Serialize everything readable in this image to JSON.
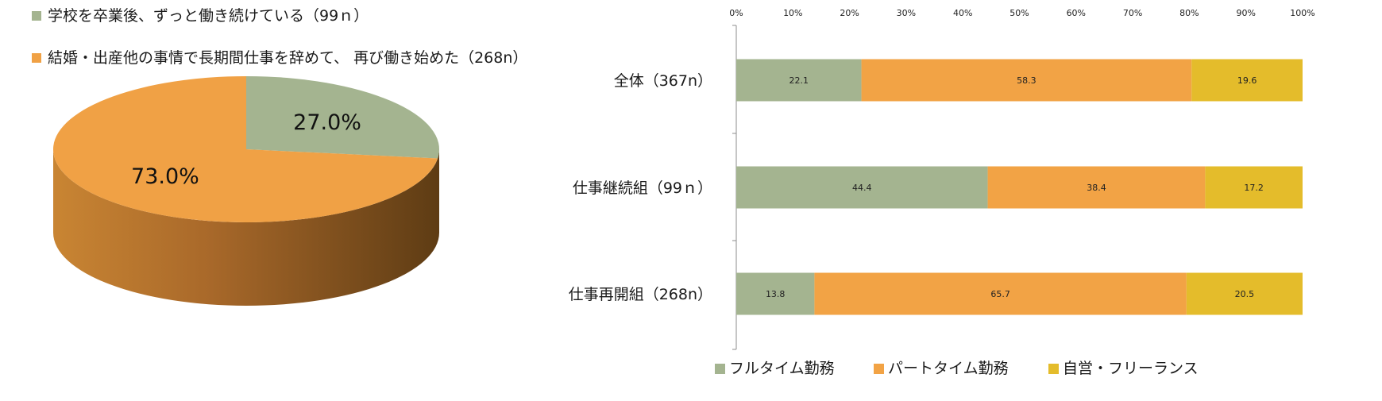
{
  "chart_data": [
    {
      "type": "pie",
      "legend_position": "top",
      "slices": [
        {
          "name": "学校を卒業後、ずっと働き続けている（99ｎ）",
          "value": 27.0,
          "label": "27.0%",
          "color": "#a4b490"
        },
        {
          "name": "結婚・出産他の事情で長期間仕事を辞めて、 再び働き始めた（268n）",
          "value": 73.0,
          "label": "73.0%",
          "color": "#f0a145"
        }
      ]
    },
    {
      "type": "bar",
      "orientation": "horizontal",
      "stacked": true,
      "xlim": [
        0,
        100
      ],
      "x_ticks": [
        "0%",
        "10%",
        "20%",
        "30%",
        "40%",
        "50%",
        "60%",
        "70%",
        "80%",
        "90%",
        "100%"
      ],
      "x_tick_values": [
        0,
        10,
        20,
        30,
        40,
        50,
        60,
        70,
        80,
        90,
        100
      ],
      "categories": [
        "全体（367n）",
        "仕事継続組（99ｎ）",
        "仕事再開組（268n）"
      ],
      "series": [
        {
          "name": "フルタイム勤務",
          "color": "#a4b490",
          "values": [
            22.1,
            44.4,
            13.8
          ]
        },
        {
          "name": "パートタイム勤務",
          "color": "#f2a345",
          "values": [
            58.3,
            38.4,
            65.7
          ]
        },
        {
          "name": "自営・フリーランス",
          "color": "#e4bc2b",
          "values": [
            19.6,
            17.2,
            20.5
          ]
        }
      ],
      "grid": false,
      "legend_position": "bottom"
    }
  ]
}
